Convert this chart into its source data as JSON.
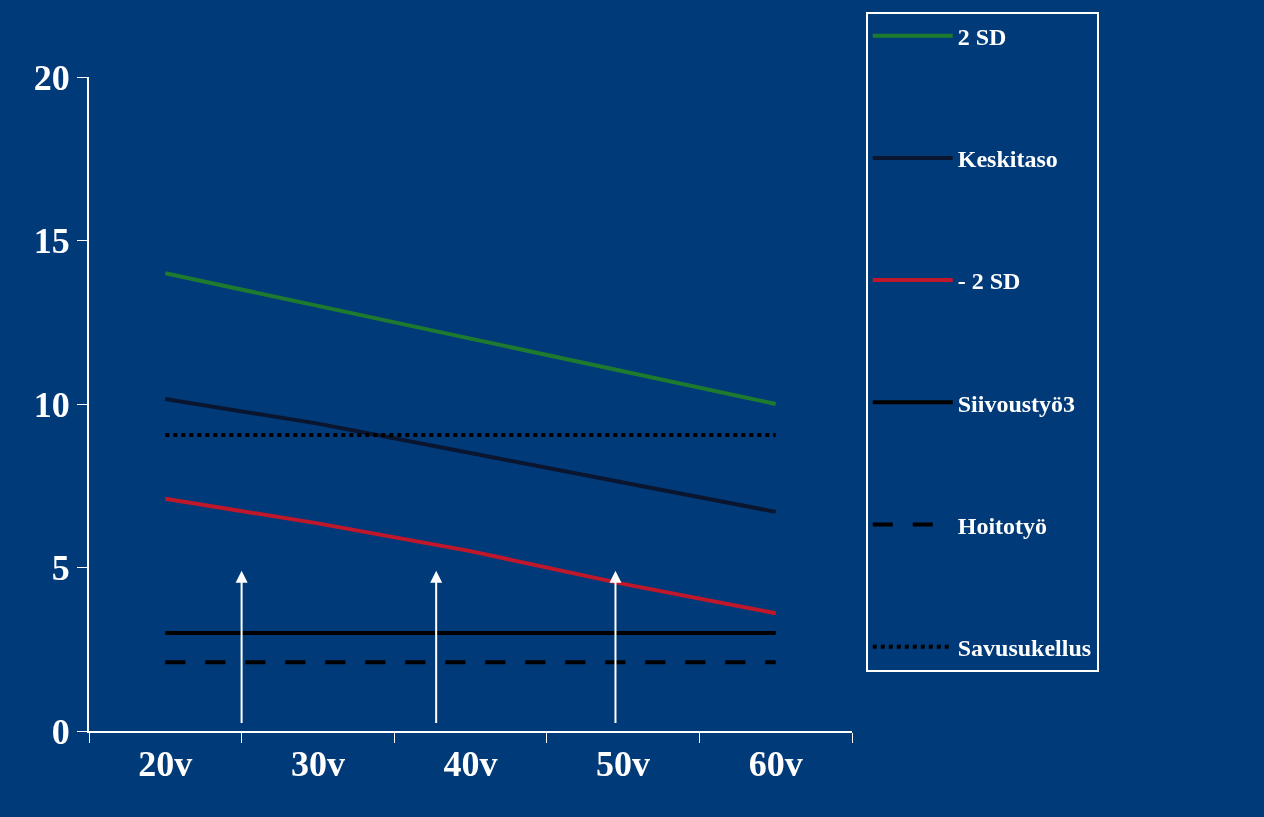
{
  "chart_data": {
    "type": "line",
    "categories": [
      "20v",
      "30v",
      "40v",
      "50v",
      "60v"
    ],
    "series": [
      {
        "name": "2 SD",
        "color": "#1e7a2e",
        "values": [
          14,
          13,
          12,
          11,
          10
        ],
        "line_style": "solid"
      },
      {
        "name": "Keskitaso",
        "color": "#0a1630",
        "values": [
          10.15,
          9.4,
          8.5,
          7.6,
          6.7
        ],
        "line_style": "solid"
      },
      {
        "name": "- 2 SD",
        "color": "#c0182a",
        "values": [
          7.1,
          6.35,
          5.5,
          4.5,
          3.6
        ],
        "line_style": "solid"
      },
      {
        "name": "Siivoustyö3",
        "color": "#000000",
        "values": [
          3,
          3,
          3,
          3,
          3
        ],
        "line_style": "solid"
      },
      {
        "name": "Hoitotyö",
        "color": "#000000",
        "values": [
          2.1,
          2.1,
          2.1,
          2.1,
          2.1
        ],
        "line_style": "dashed"
      },
      {
        "name": "Savusukellus",
        "color": "#000000",
        "values": [
          9.05,
          9.05,
          9.05,
          9.05,
          9.05
        ],
        "line_style": "dotted"
      }
    ],
    "ylim": [
      0,
      20
    ],
    "yticks": [
      0,
      5,
      10,
      15,
      20
    ],
    "grid": false,
    "legend": "right",
    "marker": "none"
  }
}
